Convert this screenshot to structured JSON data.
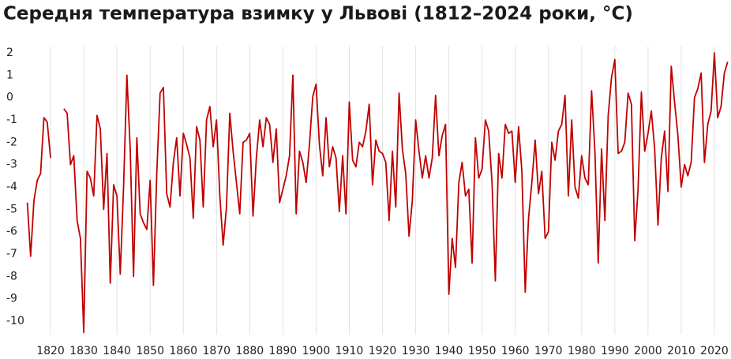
{
  "chart_data": {
    "type": "line",
    "title": "Середня температура взимку у Львові (1812–2024 роки, °C)",
    "x": [
      1813,
      1814,
      1815,
      1816,
      1817,
      1818,
      1819,
      1820,
      1821,
      1822,
      1823,
      1824,
      1825,
      1826,
      1827,
      1828,
      1829,
      1830,
      1831,
      1832,
      1833,
      1834,
      1835,
      1836,
      1837,
      1838,
      1839,
      1840,
      1841,
      1842,
      1843,
      1844,
      1845,
      1846,
      1847,
      1848,
      1849,
      1850,
      1851,
      1852,
      1853,
      1854,
      1855,
      1856,
      1857,
      1858,
      1859,
      1860,
      1861,
      1862,
      1863,
      1864,
      1865,
      1866,
      1867,
      1868,
      1869,
      1870,
      1871,
      1872,
      1873,
      1874,
      1875,
      1876,
      1877,
      1878,
      1879,
      1880,
      1881,
      1882,
      1883,
      1884,
      1885,
      1886,
      1887,
      1888,
      1889,
      1890,
      1891,
      1892,
      1893,
      1894,
      1895,
      1896,
      1897,
      1898,
      1899,
      1900,
      1901,
      1902,
      1903,
      1904,
      1905,
      1906,
      1907,
      1908,
      1909,
      1910,
      1911,
      1912,
      1913,
      1914,
      1915,
      1916,
      1917,
      1918,
      1919,
      1920,
      1921,
      1922,
      1923,
      1924,
      1925,
      1926,
      1927,
      1928,
      1929,
      1930,
      1931,
      1932,
      1933,
      1934,
      1935,
      1936,
      1937,
      1938,
      1939,
      1940,
      1941,
      1942,
      1943,
      1944,
      1945,
      1946,
      1947,
      1948,
      1949,
      1950,
      1951,
      1952,
      1953,
      1954,
      1955,
      1956,
      1957,
      1958,
      1959,
      1960,
      1961,
      1962,
      1963,
      1964,
      1965,
      1966,
      1967,
      1968,
      1969,
      1970,
      1971,
      1972,
      1973,
      1974,
      1975,
      1976,
      1977,
      1978,
      1979,
      1980,
      1981,
      1982,
      1983,
      1984,
      1985,
      1986,
      1987,
      1988,
      1989,
      1990,
      1991,
      1992,
      1993,
      1994,
      1995,
      1996,
      1997,
      1998,
      1999,
      2000,
      2001,
      2002,
      2003,
      2004,
      2005,
      2006,
      2007,
      2008,
      2009,
      2010,
      2011,
      2012,
      2013,
      2014,
      2015,
      2016,
      2017,
      2018,
      2019,
      2020,
      2021,
      2022,
      2023,
      2024
    ],
    "series": [
      {
        "name": "Середня температура взимку",
        "color": "#c00000",
        "values": [
          -4.7,
          -7.1,
          -4.6,
          -3.7,
          -3.4,
          -0.9,
          -1.1,
          -2.7,
          null,
          null,
          null,
          -0.5,
          -0.7,
          -3.0,
          -2.6,
          -5.5,
          -6.3,
          -10.5,
          -3.3,
          -3.6,
          -4.4,
          -0.8,
          -1.4,
          -5.0,
          -2.5,
          -8.3,
          -3.9,
          -4.4,
          -7.9,
          -4.0,
          1.0,
          -2.3,
          -8.0,
          -1.8,
          -5.2,
          -5.6,
          -5.9,
          -3.7,
          -8.4,
          -3.4,
          0.2,
          0.45,
          -4.3,
          -4.9,
          -2.9,
          -1.8,
          -4.4,
          -1.6,
          -2.1,
          -2.7,
          -5.4,
          -1.3,
          -1.9,
          -4.9,
          -1.0,
          -0.4,
          -2.2,
          -1.0,
          -4.4,
          -6.6,
          -4.9,
          -0.7,
          -2.4,
          -3.8,
          -5.2,
          -2.0,
          -1.9,
          -1.6,
          -5.3,
          -2.7,
          -1.0,
          -2.2,
          -0.9,
          -1.2,
          -2.9,
          -1.4,
          -4.7,
          -4.1,
          -3.5,
          -2.6,
          1.0,
          -5.2,
          -2.4,
          -2.9,
          -3.8,
          -2.1,
          0.05,
          0.6,
          -2.1,
          -3.5,
          -0.9,
          -3.1,
          -2.2,
          -2.7,
          -5.1,
          -2.6,
          -5.2,
          -0.2,
          -2.8,
          -3.1,
          -2.0,
          -2.2,
          -1.5,
          -0.3,
          -3.9,
          -1.9,
          -2.4,
          -2.5,
          -2.9,
          -5.5,
          -2.4,
          -4.9,
          0.2,
          -2.3,
          -3.4,
          -6.2,
          -4.6,
          -1.0,
          -2.4,
          -3.6,
          -2.6,
          -3.6,
          -2.7,
          0.1,
          -2.6,
          -1.7,
          -1.2,
          -8.8,
          -6.3,
          -7.6,
          -3.8,
          -2.9,
          -4.4,
          -4.1,
          -7.4,
          -1.8,
          -3.6,
          -3.2,
          -1.0,
          -1.5,
          -3.8,
          -8.2,
          -2.5,
          -3.6,
          -1.2,
          -1.6,
          -1.5,
          -3.8,
          -1.3,
          -3.3,
          -8.7,
          -5.4,
          -3.8,
          -1.9,
          -4.3,
          -3.3,
          -6.3,
          -6.0,
          -2.0,
          -2.8,
          -1.5,
          -1.2,
          0.1,
          -4.4,
          -1.0,
          -4.0,
          -4.5,
          -2.6,
          -3.6,
          -3.9,
          0.3,
          -2.4,
          -7.4,
          -2.3,
          -5.5,
          -0.8,
          0.9,
          1.7,
          -2.5,
          -2.4,
          -2.0,
          0.2,
          -0.3,
          -6.4,
          -4.1,
          0.25,
          -2.4,
          -1.6,
          -0.6,
          -2.3,
          -5.7,
          -2.7,
          -1.5,
          -4.2,
          1.4,
          -0.2,
          -1.7,
          -4.0,
          -3.0,
          -3.5,
          -2.9,
          0.0,
          0.4,
          1.1,
          -2.9,
          -1.2,
          -0.6,
          2.0,
          -0.9,
          -0.4,
          1.1,
          1.6
        ]
      }
    ],
    "xlim": [
      1812,
      2024
    ],
    "xticks": [
      1820,
      1830,
      1840,
      1850,
      1860,
      1870,
      1880,
      1890,
      1900,
      1910,
      1920,
      1930,
      1940,
      1950,
      1960,
      1970,
      1980,
      1990,
      2000,
      2010,
      2020
    ],
    "ylim": [
      -10.6,
      2.3
    ],
    "yticks": [
      2,
      1,
      0,
      -1,
      -2,
      -3,
      -4,
      -5,
      -6,
      -7,
      -8,
      -9,
      -10
    ],
    "grid": true
  }
}
